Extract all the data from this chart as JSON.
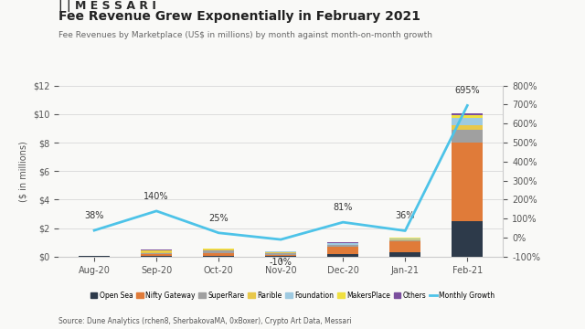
{
  "title": "Fee Revenue Grew Exponentially in February 2021",
  "subtitle": "Fee Revenues by Marketplace (US$ in millions) by month against month-on-month growth",
  "logo_text": "MESSARI",
  "source_text": "Source: Dune Analytics (rchen8, SherbakovaMA, 0xBoxer), Crypto Art Data, Messari",
  "months": [
    "Aug-20",
    "Sep-20",
    "Oct-20",
    "Nov-20",
    "Dec-20",
    "Jan-21",
    "Feb-21"
  ],
  "bar_data": {
    "Open Sea": [
      0.02,
      0.05,
      0.07,
      0.04,
      0.15,
      0.3,
      2.5
    ],
    "Nifty Gateway": [
      0.0,
      0.1,
      0.2,
      0.1,
      0.55,
      0.75,
      5.5
    ],
    "SuperRare": [
      0.02,
      0.1,
      0.15,
      0.1,
      0.1,
      0.1,
      0.9
    ],
    "Rarible": [
      0.02,
      0.15,
      0.1,
      0.08,
      0.05,
      0.05,
      0.35
    ],
    "Foundation": [
      0.0,
      0.0,
      0.0,
      0.02,
      0.1,
      0.1,
      0.5
    ],
    "MakersPlace": [
      0.0,
      0.05,
      0.05,
      0.03,
      0.03,
      0.04,
      0.2
    ],
    "Others": [
      0.0,
      0.02,
      0.02,
      0.02,
      0.02,
      0.02,
      0.1
    ]
  },
  "bar_colors": {
    "Open Sea": "#2d3a4a",
    "Nifty Gateway": "#e07b39",
    "SuperRare": "#a0a0a0",
    "Rarible": "#e8c84a",
    "Foundation": "#9ecae1",
    "MakersPlace": "#f0e040",
    "Others": "#7b4f9e"
  },
  "growth_rates": [
    38,
    140,
    25,
    -10,
    81,
    36,
    695
  ],
  "growth_color": "#4dc3e8",
  "ylim_left": [
    0,
    12
  ],
  "ylim_right": [
    -100,
    800
  ],
  "yticks_left": [
    0,
    2,
    4,
    6,
    8,
    10,
    12
  ],
  "yticks_right": [
    -100,
    0,
    100,
    200,
    300,
    400,
    500,
    600,
    700,
    800
  ],
  "background_color": "#f9f9f7",
  "plot_bg_color": "#f9f9f7"
}
